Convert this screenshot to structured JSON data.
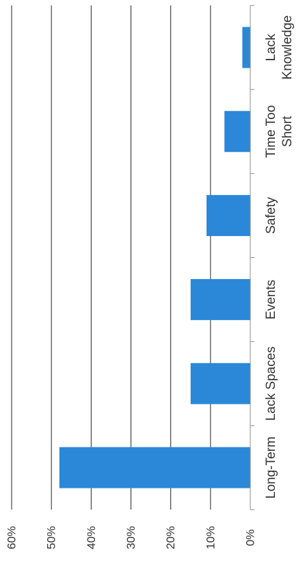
{
  "chart_data": {
    "type": "bar",
    "orientation": "horizontal",
    "categories": [
      "Long-Term",
      "Lack Spaces",
      "Events",
      "Safety",
      "Time Too Short",
      "Lack Knowledge"
    ],
    "category_label_lines": [
      [
        "Long-Term"
      ],
      [
        "Lack Spaces"
      ],
      [
        "Events"
      ],
      [
        "Safety"
      ],
      [
        "Time Too",
        "Short"
      ],
      [
        "Lack",
        "Knowledge"
      ]
    ],
    "values": [
      0.48,
      0.15,
      0.15,
      0.11,
      0.065,
      0.02
    ],
    "value_axis": {
      "ylim": [
        0,
        0.6
      ],
      "ticks": [
        0,
        0.1,
        0.2,
        0.3,
        0.4,
        0.5,
        0.6
      ],
      "tick_labels": [
        "0%",
        "10%",
        "20%",
        "30%",
        "40%",
        "50%",
        "60%"
      ]
    },
    "bar_color": "#2b87d8",
    "grid": true,
    "title": "",
    "xlabel": "",
    "ylabel": ""
  }
}
